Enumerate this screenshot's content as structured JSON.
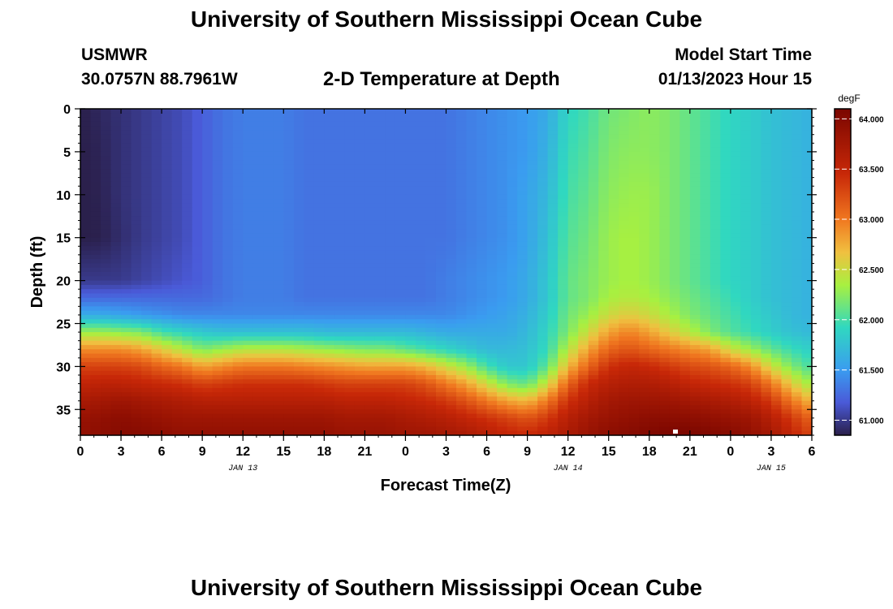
{
  "header": {
    "title": "University of Southern Mississippi Ocean Cube",
    "station": "USMWR",
    "coords": "30.0757N  88.7961W",
    "plot_title": "2-D Temperature at Depth",
    "start_label": "Model Start Time",
    "start_time": "01/13/2023 Hour 15"
  },
  "footer": {
    "title": "University of Southern Mississippi Ocean Cube"
  },
  "colors": {
    "cold": "#2a1f4a",
    "mid": "#3a9cf0",
    "warm": "#f0c040",
    "hot": "#8b0a00"
  },
  "chart_data": {
    "type": "heatmap",
    "title": "2-D Temperature at Depth",
    "xlabel": "Forecast Time(Z)",
    "ylabel": "Depth (ft)",
    "x_tick_labels": [
      "0",
      "3",
      "6",
      "9",
      "12",
      "15",
      "18",
      "21",
      "0",
      "3",
      "6",
      "9",
      "12",
      "15",
      "18",
      "21",
      "0",
      "3",
      "6"
    ],
    "date_labels": [
      {
        "label": "JAN 13",
        "x_hours": 12
      },
      {
        "label": "JAN 14",
        "x_hours": 36
      },
      {
        "label": "JAN 15",
        "x_hours": 51
      }
    ],
    "y_ticks": [
      0,
      5,
      10,
      15,
      20,
      25,
      30,
      35
    ],
    "xlim": [
      0,
      54
    ],
    "ylim": [
      0,
      38
    ],
    "colorbar": {
      "label": "degF",
      "ticks": [
        "61.000",
        "61.500",
        "62.000",
        "62.500",
        "63.000",
        "63.500",
        "64.000"
      ],
      "range": [
        60.85,
        64.1
      ]
    },
    "description_grid": "Temperature (degF) by forecast hour (columns, 0-54 step 1.5) and depth (rows)",
    "x_hours": [
      0,
      1.5,
      3,
      4.5,
      6,
      7.5,
      9,
      10.5,
      12,
      13.5,
      15,
      16.5,
      18,
      19.5,
      21,
      22.5,
      24,
      25.5,
      27,
      28.5,
      30,
      31.5,
      33,
      34.5,
      36,
      37.5,
      39,
      40.5,
      42,
      43.5,
      45,
      46.5,
      48,
      49.5,
      51,
      52.5,
      54
    ],
    "depths_ft": [
      0,
      5,
      10,
      15,
      20,
      22,
      24,
      26,
      28,
      30,
      32,
      34,
      36,
      38
    ],
    "values": [
      [
        60.85,
        60.9,
        60.95,
        61.0,
        61.05,
        61.1,
        61.2,
        61.3,
        61.35,
        61.35,
        61.35,
        61.3,
        61.3,
        61.3,
        61.3,
        61.3,
        61.3,
        61.3,
        61.3,
        61.35,
        61.4,
        61.45,
        61.5,
        61.6,
        61.9,
        62.0,
        62.15,
        62.2,
        62.25,
        62.2,
        62.1,
        62.0,
        61.9,
        61.85,
        61.75,
        61.7,
        61.65
      ],
      [
        60.85,
        60.88,
        60.95,
        61.0,
        61.05,
        61.1,
        61.2,
        61.3,
        61.35,
        61.35,
        61.35,
        61.3,
        61.3,
        61.3,
        61.3,
        61.3,
        61.3,
        61.3,
        61.3,
        61.35,
        61.4,
        61.45,
        61.5,
        61.65,
        61.95,
        62.05,
        62.2,
        62.25,
        62.25,
        62.2,
        62.1,
        62.0,
        61.9,
        61.85,
        61.75,
        61.7,
        61.65
      ],
      [
        60.85,
        60.87,
        60.95,
        61.0,
        61.05,
        61.1,
        61.2,
        61.3,
        61.35,
        61.35,
        61.35,
        61.3,
        61.3,
        61.3,
        61.3,
        61.3,
        61.3,
        61.3,
        61.3,
        61.35,
        61.4,
        61.45,
        61.55,
        61.7,
        62.0,
        62.1,
        62.25,
        62.3,
        62.3,
        62.2,
        62.1,
        62.0,
        61.9,
        61.85,
        61.75,
        61.7,
        61.65
      ],
      [
        60.85,
        60.86,
        60.93,
        61.0,
        61.05,
        61.1,
        61.2,
        61.3,
        61.35,
        61.35,
        61.35,
        61.3,
        61.3,
        61.3,
        61.3,
        61.3,
        61.3,
        61.3,
        61.3,
        61.35,
        61.4,
        61.45,
        61.55,
        61.75,
        62.05,
        62.15,
        62.3,
        62.35,
        62.3,
        62.2,
        62.1,
        62.0,
        61.9,
        61.85,
        61.75,
        61.7,
        61.65
      ],
      [
        61.0,
        61.0,
        61.0,
        61.05,
        61.1,
        61.15,
        61.2,
        61.3,
        61.35,
        61.35,
        61.35,
        61.3,
        61.3,
        61.3,
        61.3,
        61.3,
        61.3,
        61.3,
        61.35,
        61.4,
        61.45,
        61.5,
        61.6,
        61.8,
        62.1,
        62.2,
        62.3,
        62.35,
        62.3,
        62.2,
        62.1,
        62.0,
        61.9,
        61.85,
        61.75,
        61.7,
        61.65
      ],
      [
        61.25,
        61.25,
        61.25,
        61.25,
        61.25,
        61.25,
        61.25,
        61.3,
        61.35,
        61.35,
        61.35,
        61.3,
        61.3,
        61.3,
        61.3,
        61.3,
        61.3,
        61.3,
        61.35,
        61.4,
        61.45,
        61.5,
        61.6,
        61.8,
        62.1,
        62.2,
        62.35,
        62.4,
        62.35,
        62.25,
        62.15,
        62.05,
        61.95,
        61.85,
        61.75,
        61.7,
        61.65
      ],
      [
        61.6,
        61.6,
        61.55,
        61.5,
        61.45,
        61.4,
        61.4,
        61.4,
        61.4,
        61.4,
        61.4,
        61.4,
        61.4,
        61.4,
        61.4,
        61.4,
        61.4,
        61.4,
        61.4,
        61.45,
        61.5,
        61.55,
        61.65,
        61.85,
        62.15,
        62.3,
        62.5,
        62.6,
        62.5,
        62.35,
        62.2,
        62.1,
        62.0,
        61.9,
        61.8,
        61.7,
        61.65
      ],
      [
        62.3,
        62.3,
        62.25,
        62.2,
        62.0,
        61.9,
        61.8,
        61.75,
        61.75,
        61.75,
        61.75,
        61.75,
        61.7,
        61.7,
        61.7,
        61.7,
        61.7,
        61.65,
        61.6,
        61.6,
        61.6,
        61.6,
        61.7,
        61.9,
        62.2,
        62.5,
        62.8,
        62.95,
        62.8,
        62.6,
        62.4,
        62.2,
        62.05,
        61.95,
        61.85,
        61.75,
        61.7
      ],
      [
        62.9,
        62.9,
        62.9,
        62.8,
        62.6,
        62.4,
        62.2,
        62.3,
        62.4,
        62.4,
        62.4,
        62.35,
        62.3,
        62.25,
        62.2,
        62.2,
        62.1,
        62.0,
        61.9,
        61.8,
        61.7,
        61.7,
        61.75,
        61.95,
        62.4,
        62.8,
        63.1,
        63.2,
        63.1,
        63.0,
        62.9,
        62.8,
        62.5,
        62.3,
        62.1,
        61.95,
        61.85
      ],
      [
        63.3,
        63.3,
        63.3,
        63.25,
        63.1,
        63.0,
        62.8,
        62.9,
        63.0,
        63.0,
        63.0,
        62.95,
        62.9,
        62.85,
        62.8,
        62.8,
        62.8,
        62.7,
        62.5,
        62.3,
        62.0,
        61.8,
        61.8,
        62.1,
        62.7,
        63.1,
        63.4,
        63.5,
        63.45,
        63.35,
        63.25,
        63.2,
        63.1,
        62.9,
        62.5,
        62.2,
        62.0
      ],
      [
        63.5,
        63.55,
        63.55,
        63.5,
        63.45,
        63.4,
        63.3,
        63.35,
        63.4,
        63.4,
        63.4,
        63.4,
        63.35,
        63.3,
        63.3,
        63.3,
        63.3,
        63.2,
        63.0,
        62.8,
        62.5,
        62.2,
        62.1,
        62.5,
        63.1,
        63.45,
        63.6,
        63.65,
        63.65,
        63.6,
        63.5,
        63.45,
        63.4,
        63.3,
        63.0,
        62.6,
        62.3
      ],
      [
        63.7,
        63.75,
        63.8,
        63.75,
        63.7,
        63.65,
        63.6,
        63.6,
        63.6,
        63.6,
        63.6,
        63.6,
        63.6,
        63.55,
        63.55,
        63.55,
        63.5,
        63.45,
        63.35,
        63.2,
        63.0,
        62.8,
        62.7,
        63.0,
        63.4,
        63.6,
        63.75,
        63.8,
        63.8,
        63.8,
        63.75,
        63.7,
        63.65,
        63.55,
        63.35,
        63.0,
        62.7
      ],
      [
        63.85,
        63.9,
        63.95,
        63.9,
        63.85,
        63.8,
        63.8,
        63.8,
        63.8,
        63.8,
        63.8,
        63.8,
        63.8,
        63.75,
        63.75,
        63.75,
        63.7,
        63.65,
        63.6,
        63.5,
        63.4,
        63.3,
        63.2,
        63.35,
        63.6,
        63.75,
        63.85,
        63.9,
        63.95,
        63.95,
        63.95,
        63.9,
        63.85,
        63.8,
        63.6,
        63.35,
        63.1
      ],
      [
        63.9,
        63.95,
        64.0,
        64.0,
        63.95,
        63.9,
        63.9,
        63.9,
        63.9,
        63.9,
        63.9,
        63.9,
        63.9,
        63.85,
        63.85,
        63.85,
        63.8,
        63.8,
        63.75,
        63.7,
        63.6,
        63.5,
        63.45,
        63.55,
        63.7,
        63.85,
        63.95,
        64.0,
        64.05,
        64.1,
        64.1,
        64.05,
        64.0,
        63.9,
        63.75,
        63.5,
        63.3
      ]
    ]
  }
}
